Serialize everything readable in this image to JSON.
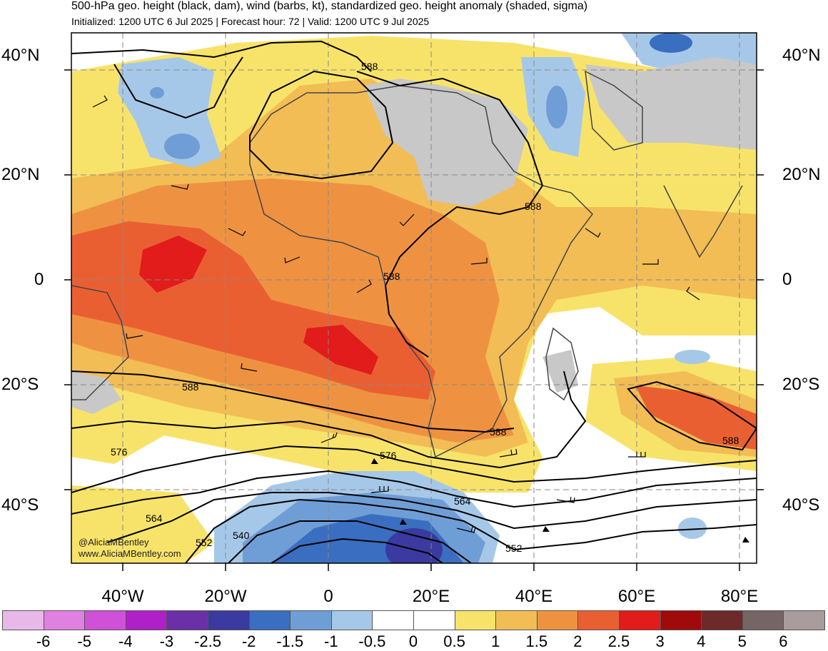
{
  "header": {
    "title": "500-hPa geo. height (black, dam), wind (barbs, kt), standardized geo. height anomaly (shaded, sigma)",
    "subtitle": "Initialized: 1200 UTC 6 Jul 2025 | Forecast hour: 72 | Valid: 1200 UTC 9 Jul 2025"
  },
  "axes": {
    "lat_labels": [
      "40°N",
      "20°N",
      "0",
      "20°S",
      "40°S"
    ],
    "lon_labels": [
      "40°W",
      "20°W",
      "0",
      "20°E",
      "40°E",
      "60°E",
      "80°E"
    ]
  },
  "contour_labels": [
    "588",
    "588",
    "588",
    "588",
    "588",
    "588",
    "576",
    "576",
    "564",
    "564",
    "552",
    "552",
    "540"
  ],
  "credits": {
    "handle": "@AliciaMBentley",
    "site": "www.AliciaMBentley.com"
  },
  "legend": {
    "labels": [
      "-6",
      "-5",
      "-4",
      "-3",
      "-2.5",
      "-2",
      "-1.5",
      "-1",
      "-0.5",
      "0",
      "0.5",
      "1",
      "1.5",
      "2",
      "2.5",
      "3",
      "4",
      "5",
      "6"
    ],
    "colors": [
      "#e8b8e8",
      "#e080e0",
      "#d050d8",
      "#b020c8",
      "#6b2fa8",
      "#3a3aa0",
      "#3a6ec0",
      "#6f9ed6",
      "#a6c8e8",
      "#ffffff",
      "#ffffff",
      "#f8e36a",
      "#f2bd55",
      "#ee9242",
      "#ea5f32",
      "#e21b1b",
      "#a00a0a",
      "#6e2a2a",
      "#756565",
      "#a89c9c"
    ]
  }
}
